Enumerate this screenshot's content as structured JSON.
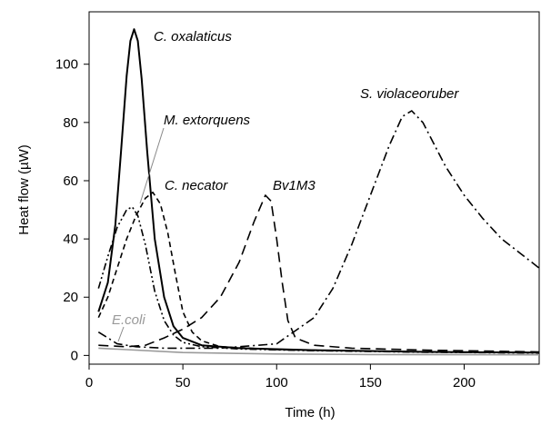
{
  "chart_data": {
    "type": "line",
    "title": "",
    "xlabel": "Time (h)",
    "ylabel": "Heat flow (µW)",
    "xlim": [
      0,
      240
    ],
    "ylim": [
      -3,
      118
    ],
    "x_ticks": [
      0,
      50,
      100,
      150,
      200
    ],
    "y_ticks": [
      0,
      20,
      40,
      60,
      80,
      100
    ],
    "grid": false,
    "legend": "none (direct labels)",
    "series": [
      {
        "name": "C. oxalaticus",
        "style": "solid",
        "color": "#000000",
        "points": [
          [
            5,
            15
          ],
          [
            10,
            25
          ],
          [
            14,
            45
          ],
          [
            17,
            70
          ],
          [
            20,
            96
          ],
          [
            22,
            108
          ],
          [
            24,
            112
          ],
          [
            26,
            108
          ],
          [
            28,
            95
          ],
          [
            31,
            70
          ],
          [
            35,
            40
          ],
          [
            40,
            20
          ],
          [
            45,
            10
          ],
          [
            50,
            6
          ],
          [
            60,
            3.5
          ],
          [
            80,
            2.5
          ],
          [
            120,
            1.8
          ],
          [
            180,
            1.2
          ],
          [
            240,
            1.0
          ]
        ]
      },
      {
        "name": "M. extorquens",
        "style": "dash-dot-dot",
        "color": "#000000",
        "points": [
          [
            5,
            23
          ],
          [
            10,
            34
          ],
          [
            15,
            44
          ],
          [
            20,
            50
          ],
          [
            23,
            51
          ],
          [
            26,
            48
          ],
          [
            30,
            38
          ],
          [
            35,
            22
          ],
          [
            40,
            12
          ],
          [
            45,
            7
          ],
          [
            50,
            4.5
          ],
          [
            60,
            3
          ],
          [
            80,
            2.2
          ],
          [
            120,
            1.6
          ],
          [
            180,
            1.1
          ],
          [
            240,
            0.8
          ]
        ]
      },
      {
        "name": "C. necator",
        "style": "short-dash",
        "color": "#000000",
        "points": [
          [
            5,
            13
          ],
          [
            10,
            20
          ],
          [
            15,
            30
          ],
          [
            20,
            40
          ],
          [
            25,
            48
          ],
          [
            30,
            54
          ],
          [
            34,
            56
          ],
          [
            38,
            52
          ],
          [
            42,
            42
          ],
          [
            46,
            28
          ],
          [
            50,
            15
          ],
          [
            55,
            8
          ],
          [
            60,
            5
          ],
          [
            70,
            3
          ],
          [
            100,
            2
          ],
          [
            150,
            1.5
          ],
          [
            200,
            1.1
          ],
          [
            240,
            1.0
          ]
        ]
      },
      {
        "name": "Bv1M3",
        "style": "long-dash",
        "color": "#000000",
        "points": [
          [
            5,
            3.5
          ],
          [
            20,
            3
          ],
          [
            30,
            3.5
          ],
          [
            40,
            6
          ],
          [
            50,
            9
          ],
          [
            60,
            13
          ],
          [
            70,
            20
          ],
          [
            80,
            32
          ],
          [
            88,
            46
          ],
          [
            94,
            55
          ],
          [
            97,
            53
          ],
          [
            100,
            40
          ],
          [
            103,
            25
          ],
          [
            106,
            12
          ],
          [
            110,
            6
          ],
          [
            120,
            3.5
          ],
          [
            140,
            2.5
          ],
          [
            180,
            1.8
          ],
          [
            240,
            1.2
          ]
        ]
      },
      {
        "name": "S. violaceoruber",
        "style": "dash-dot",
        "color": "#000000",
        "points": [
          [
            5,
            8
          ],
          [
            10,
            6
          ],
          [
            15,
            4
          ],
          [
            25,
            3
          ],
          [
            40,
            2.5
          ],
          [
            70,
            2.5
          ],
          [
            100,
            4
          ],
          [
            120,
            13
          ],
          [
            130,
            23
          ],
          [
            140,
            38
          ],
          [
            150,
            55
          ],
          [
            160,
            72
          ],
          [
            167,
            82
          ],
          [
            172,
            84
          ],
          [
            178,
            80
          ],
          [
            190,
            65
          ],
          [
            200,
            55
          ],
          [
            210,
            47
          ],
          [
            220,
            40
          ],
          [
            230,
            35
          ],
          [
            240,
            30
          ]
        ]
      },
      {
        "name": "E.coli",
        "style": "solid",
        "color": "#9a9a9a",
        "points": [
          [
            5,
            2.5
          ],
          [
            20,
            2
          ],
          [
            50,
            1
          ],
          [
            100,
            0.5
          ],
          [
            150,
            0.3
          ],
          [
            240,
            0.2
          ]
        ]
      }
    ]
  }
}
